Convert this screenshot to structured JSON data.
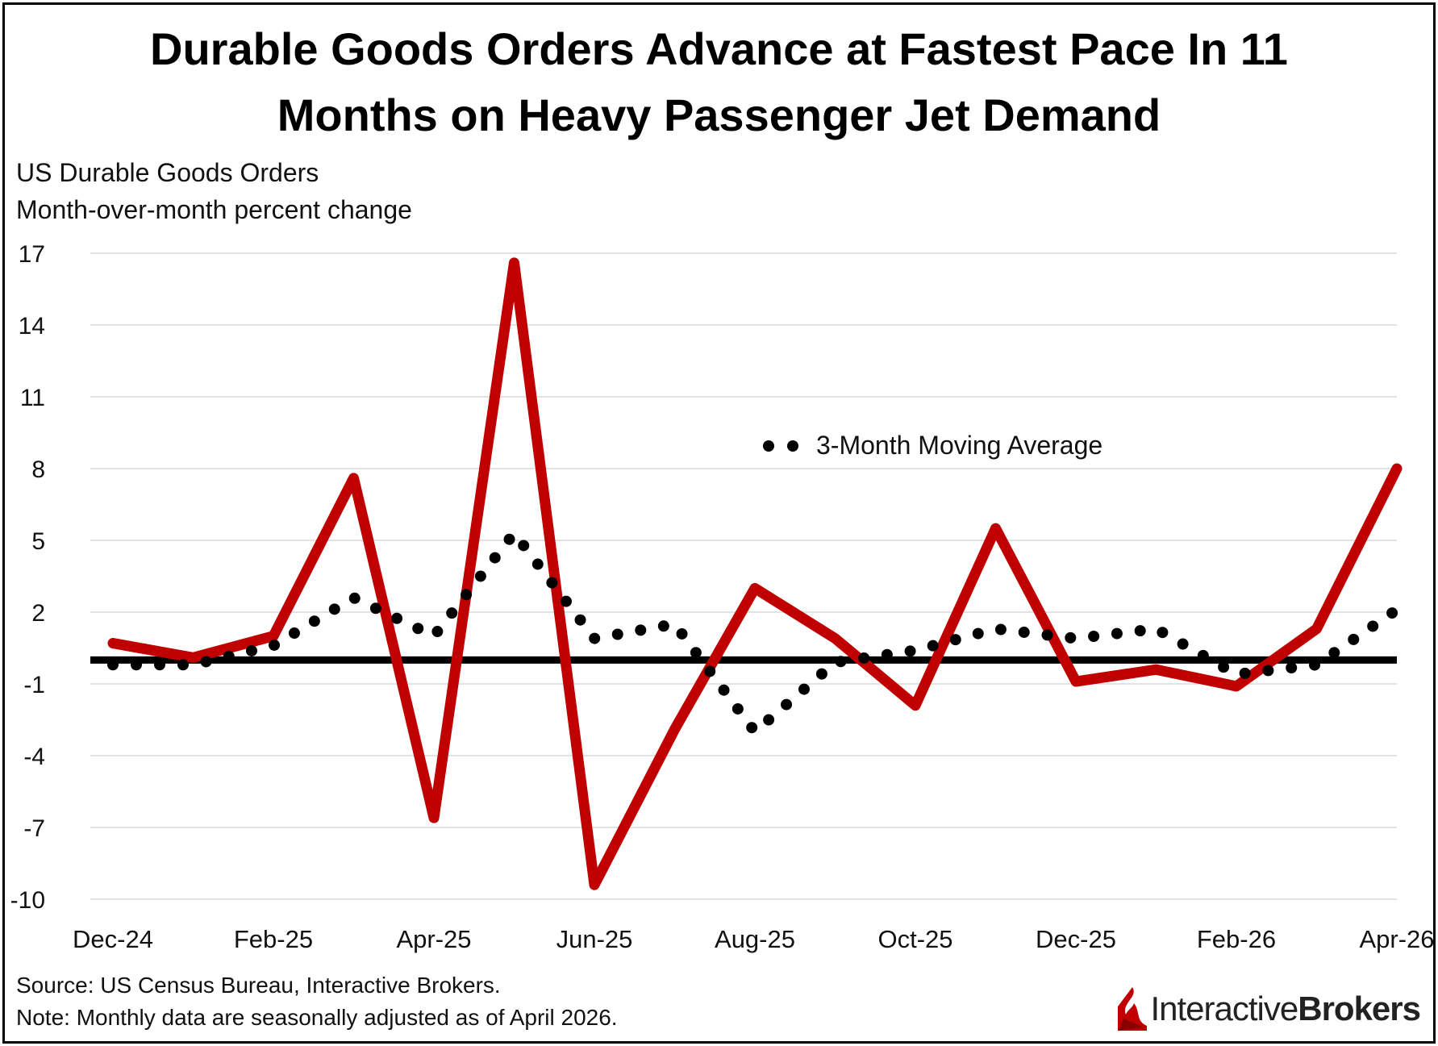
{
  "title_line1": "Durable Goods Orders Advance at Fastest Pace In 11",
  "title_line2": "Months on Heavy Passenger Jet Demand",
  "subtitle_line1": "US Durable Goods Orders",
  "subtitle_line2": "Month-over-month percent change",
  "source": "Source: US Census Bureau, Interactive Brokers.",
  "note": "Note: Monthly data are seasonally adjusted as of April 2026.",
  "logo": {
    "part1": "Interactive",
    "part2": "Brokers",
    "icon": "ib-flame-icon"
  },
  "colors": {
    "series": "#c00000",
    "moving_average": "#000000",
    "zero_line": "#000000",
    "grid": "#d9d9d9"
  },
  "chart_data": {
    "type": "line",
    "x": [
      "Dec-24",
      "Jan-25",
      "Feb-25",
      "Mar-25",
      "Apr-25",
      "May-25",
      "Jun-25",
      "Jul-25",
      "Aug-25",
      "Sep-25",
      "Oct-25",
      "Nov-25",
      "Dec-25",
      "Jan-26",
      "Feb-26",
      "Mar-26",
      "Apr-26"
    ],
    "x_tick_labels": [
      "Dec-24",
      "Feb-25",
      "Apr-25",
      "Jun-25",
      "Aug-25",
      "Oct-25",
      "Dec-25",
      "Feb-26",
      "Apr-26"
    ],
    "ylim": [
      -10,
      17
    ],
    "y_ticks": [
      17,
      14,
      11,
      8,
      5,
      2,
      -1,
      -4,
      -7,
      -10
    ],
    "grid": true,
    "series": [
      {
        "values": [
          0.7,
          0.1,
          1.0,
          7.6,
          -6.6,
          16.6,
          -9.4,
          -2.9,
          3.0,
          0.9,
          -1.9,
          5.5,
          -0.9,
          -0.4,
          -1.1,
          1.3,
          8.0
        ]
      },
      {
        "name": "3-Month Moving Average",
        "style": "dotted",
        "values": [
          -0.2,
          -0.2,
          0.6,
          2.6,
          1.0,
          5.3,
          0.9,
          1.5,
          -3.0,
          -0.1,
          0.4,
          1.3,
          0.9,
          1.3,
          -0.6,
          -0.2,
          2.1
        ]
      }
    ],
    "zero_line": 0,
    "legend_position": "upper-center"
  }
}
